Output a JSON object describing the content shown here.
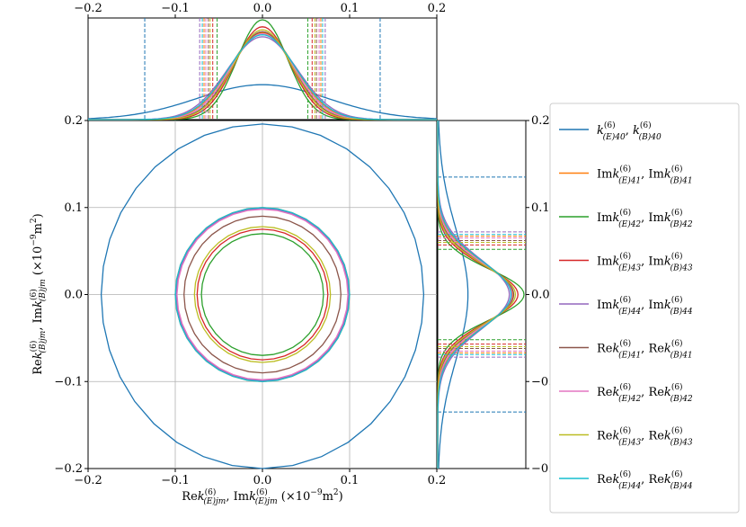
{
  "chart_data": {
    "type": "line",
    "title": "",
    "xlabel": "Rek(6)(E)jm, Imk(6)(E)jm (×10−9m2)",
    "ylabel": "Rek(6)(B)jm, Imk(6)(B)jm (×10−9m2)",
    "xlim": [
      -0.2,
      0.2
    ],
    "ylim": [
      -0.2,
      0.2
    ],
    "xticks": [
      "−0.2",
      "−0.1",
      "0.0",
      "0.1",
      "0.2"
    ],
    "yticks": [
      "−0.2",
      "−0.1",
      "0.0",
      "0.1",
      "0.2"
    ],
    "grid": true,
    "legend_position": "right",
    "series": [
      {
        "name": "k(6)(E)40, k(6)(B)40",
        "color": "#1f77b4",
        "radius": 0.185,
        "r_top": 0.196,
        "r_bottom": 0.2,
        "std": 0.135,
        "peak": 0.35
      },
      {
        "name": "Imk(6)(E)41, Imk(6)(B)41",
        "color": "#ff7f0e",
        "radius": 0.1,
        "std": 0.067,
        "peak": 0.87
      },
      {
        "name": "Imk(6)(E)42, Imk(6)(B)42",
        "color": "#2ca02c",
        "radius": 0.07,
        "std": 0.052,
        "peak": 1.0
      },
      {
        "name": "Imk(6)(E)43, Imk(6)(B)43",
        "color": "#d62728",
        "radius": 0.075,
        "std": 0.057,
        "peak": 0.93
      },
      {
        "name": "Imk(6)(E)44, Imk(6)(B)44",
        "color": "#9467bd",
        "radius": 0.099,
        "std": 0.072,
        "peak": 0.83
      },
      {
        "name": "Rek(6)(E)41, Rek(6)(B)41",
        "color": "#8c564b",
        "radius": 0.09,
        "std": 0.062,
        "peak": 0.88
      },
      {
        "name": "Rek(6)(E)42, Rek(6)(B)42",
        "color": "#e377c2",
        "radius": 0.098,
        "std": 0.065,
        "peak": 0.86
      },
      {
        "name": "Rek(6)(E)43, Rek(6)(B)43",
        "color": "#bcbd22",
        "radius": 0.078,
        "std": 0.06,
        "peak": 0.9
      },
      {
        "name": "Rek(6)(E)44, Rek(6)(B)44",
        "color": "#17becf",
        "radius": 0.1,
        "std": 0.069,
        "peak": 0.85
      }
    ]
  }
}
